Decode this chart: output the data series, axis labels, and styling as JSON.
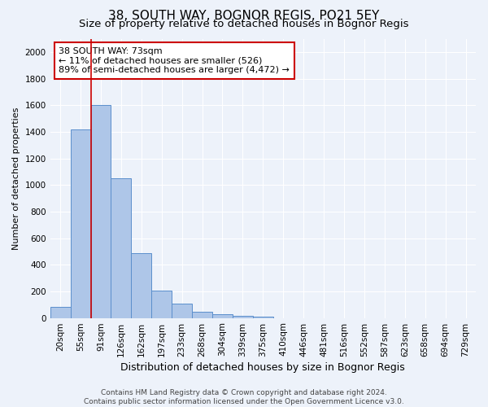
{
  "title": "38, SOUTH WAY, BOGNOR REGIS, PO21 5EY",
  "subtitle": "Size of property relative to detached houses in Bognor Regis",
  "xlabel": "Distribution of detached houses by size in Bognor Regis",
  "ylabel": "Number of detached properties",
  "categories": [
    "20sqm",
    "55sqm",
    "91sqm",
    "126sqm",
    "162sqm",
    "197sqm",
    "233sqm",
    "268sqm",
    "304sqm",
    "339sqm",
    "375sqm",
    "410sqm",
    "446sqm",
    "481sqm",
    "516sqm",
    "552sqm",
    "587sqm",
    "623sqm",
    "658sqm",
    "694sqm",
    "729sqm"
  ],
  "values": [
    85,
    1420,
    1600,
    1050,
    490,
    205,
    105,
    45,
    25,
    15,
    10,
    0,
    0,
    0,
    0,
    0,
    0,
    0,
    0,
    0,
    0
  ],
  "bar_color": "#aec6e8",
  "bar_edge_color": "#5b8fcc",
  "background_color": "#edf2fa",
  "grid_color": "#ffffff",
  "vline_color": "#cc0000",
  "annotation_line1": "38 SOUTH WAY: 73sqm",
  "annotation_line2": "← 11% of detached houses are smaller (526)",
  "annotation_line3": "89% of semi-detached houses are larger (4,472) →",
  "annotation_box_color": "#ffffff",
  "annotation_box_edge_color": "#cc0000",
  "footer_text": "Contains HM Land Registry data © Crown copyright and database right 2024.\nContains public sector information licensed under the Open Government Licence v3.0.",
  "ylim": [
    0,
    2100
  ],
  "yticks": [
    0,
    200,
    400,
    600,
    800,
    1000,
    1200,
    1400,
    1600,
    1800,
    2000
  ],
  "title_fontsize": 11,
  "subtitle_fontsize": 9.5,
  "xlabel_fontsize": 9,
  "ylabel_fontsize": 8,
  "tick_fontsize": 7.5,
  "footer_fontsize": 6.5,
  "annotation_fontsize": 8
}
